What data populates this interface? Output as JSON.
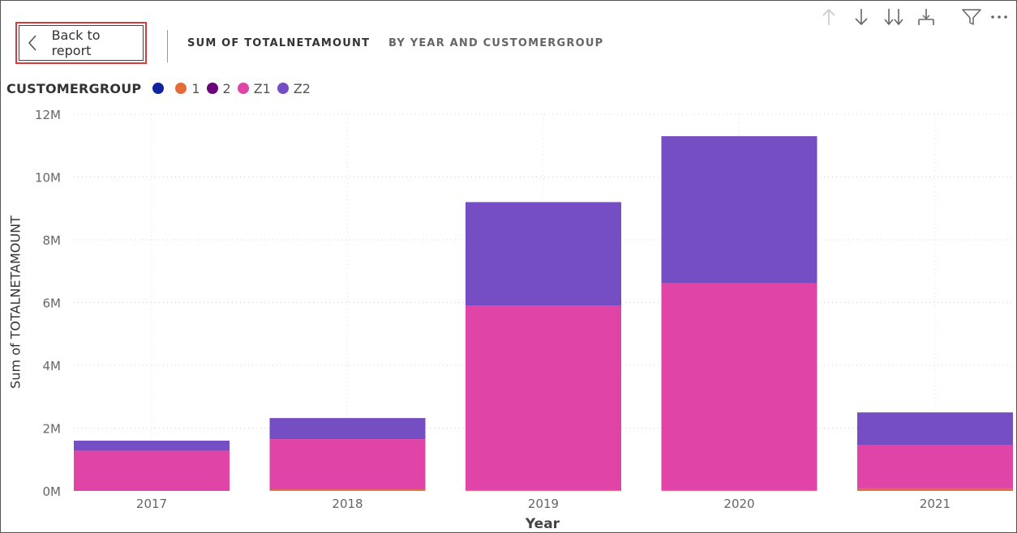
{
  "header": {
    "back_label": "Back to report",
    "title_main": "SUM OF TOTALNETAMOUNT",
    "title_sub": "BY YEAR AND CUSTOMERGROUP"
  },
  "legend": {
    "title": "CUSTOMERGROUP"
  },
  "colors": {
    "(blank)": "#12239e",
    "1": "#e66c37",
    "2": "#6b007b",
    "Z1": "#e044a7",
    "Z2": "#744ec2"
  },
  "chart_data": {
    "type": "bar",
    "stacked": true,
    "categories": [
      "2017",
      "2018",
      "2019",
      "2020",
      "2021"
    ],
    "series": [
      {
        "name": "",
        "values": [
          0,
          0,
          0,
          0,
          0
        ]
      },
      {
        "name": "1",
        "values": [
          0,
          0.05,
          0.02,
          0.02,
          0.08
        ]
      },
      {
        "name": "2",
        "values": [
          0,
          0,
          0,
          0,
          0
        ]
      },
      {
        "name": "Z1",
        "values": [
          1.28,
          1.6,
          5.88,
          6.6,
          1.38
        ]
      },
      {
        "name": "Z2",
        "values": [
          0.32,
          0.67,
          3.3,
          4.68,
          1.04
        ]
      }
    ],
    "xlabel": "Year",
    "ylabel": "Sum of TOTALNETAMOUNT",
    "ylim": [
      0,
      12
    ],
    "yticks": [
      "0M",
      "2M",
      "4M",
      "6M",
      "8M",
      "10M",
      "12M"
    ],
    "grid": true,
    "legend_position": "top-left"
  },
  "toolbar": {
    "icons": [
      "arrow-up-icon",
      "arrow-down-icon",
      "double-arrow-down-icon",
      "expand-hierarchy-icon",
      "filter-icon",
      "more-options-icon"
    ]
  }
}
